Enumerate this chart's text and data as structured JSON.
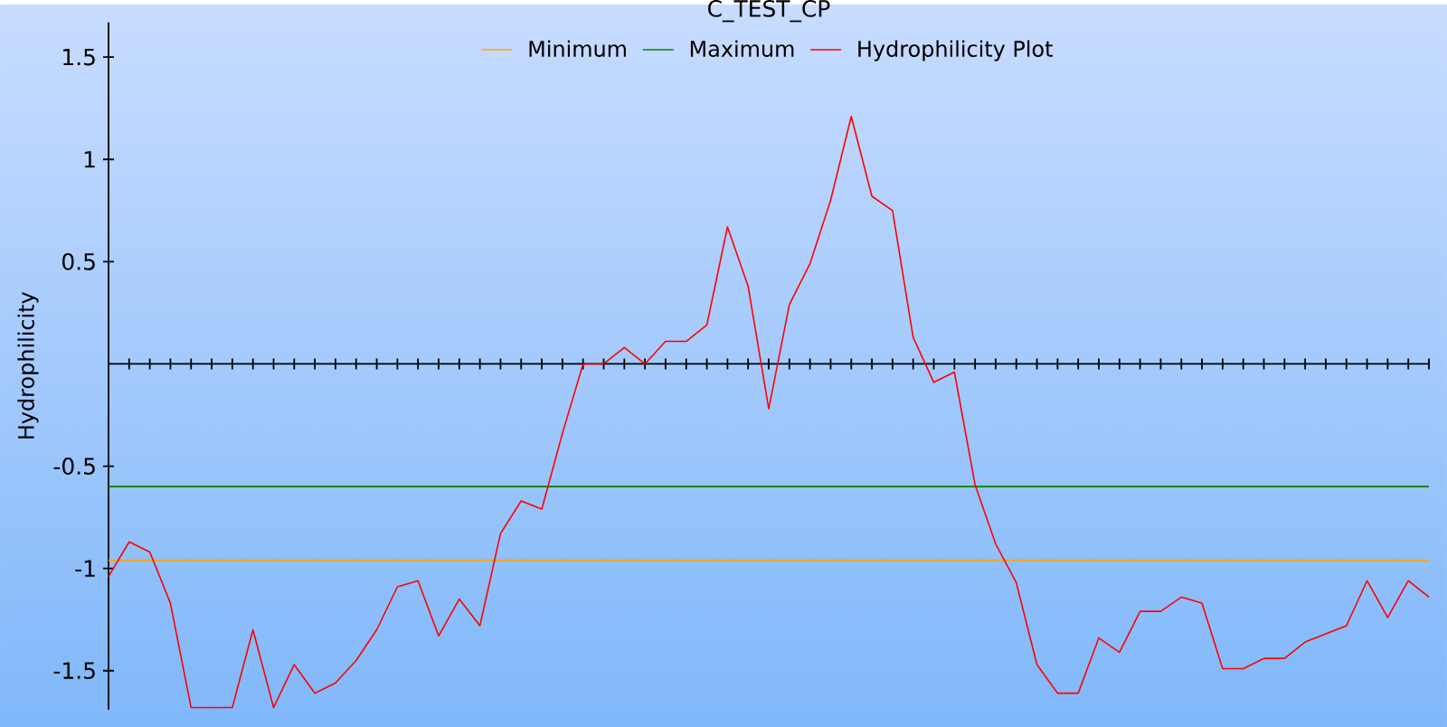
{
  "chart_data": {
    "type": "line",
    "title": "C_TEST_CP",
    "ylabel": "Hydrophilicity",
    "categories": [
      null,
      null,
      null,
      null,
      null,
      null,
      null,
      null,
      null,
      null,
      null,
      null,
      null,
      null,
      null,
      null,
      null,
      null,
      null,
      null,
      null,
      null,
      null,
      null,
      null,
      null,
      null,
      null,
      null,
      null,
      null,
      null,
      null,
      null,
      null,
      null,
      null,
      null,
      null,
      null,
      null,
      null,
      null,
      null,
      null,
      null,
      null,
      null,
      null,
      null,
      null,
      null,
      null,
      null,
      null,
      null,
      null,
      null,
      null,
      null,
      null,
      null,
      null,
      null,
      null
    ],
    "series": [
      {
        "name": "Minimum",
        "color": "#ffa500",
        "values": [
          -0.96,
          -0.96,
          -0.96,
          -0.96,
          -0.96,
          -0.96,
          -0.96,
          -0.96,
          -0.96,
          -0.96,
          -0.96,
          -0.96,
          -0.96,
          -0.96,
          -0.96,
          -0.96,
          -0.96,
          -0.96,
          -0.96,
          -0.96,
          -0.96,
          -0.96,
          -0.96,
          -0.96,
          -0.96,
          -0.96,
          -0.96,
          -0.96,
          -0.96,
          -0.96,
          -0.96,
          -0.96,
          -0.96,
          -0.96,
          -0.96,
          -0.96,
          -0.96,
          -0.96,
          -0.96,
          -0.96,
          -0.96,
          -0.96,
          -0.96,
          -0.96,
          -0.96,
          -0.96,
          -0.96,
          -0.96,
          -0.96,
          -0.96,
          -0.96,
          -0.96,
          -0.96,
          -0.96,
          -0.96,
          -0.96,
          -0.96,
          -0.96,
          -0.96,
          -0.96,
          -0.96,
          -0.96,
          -0.96,
          -0.96,
          -0.96
        ]
      },
      {
        "name": "Maximum",
        "color": "#008000",
        "values": [
          -0.6,
          -0.6,
          -0.6,
          -0.6,
          -0.6,
          -0.6,
          -0.6,
          -0.6,
          -0.6,
          -0.6,
          -0.6,
          -0.6,
          -0.6,
          -0.6,
          -0.6,
          -0.6,
          -0.6,
          -0.6,
          -0.6,
          -0.6,
          -0.6,
          -0.6,
          -0.6,
          -0.6,
          -0.6,
          -0.6,
          -0.6,
          -0.6,
          -0.6,
          -0.6,
          -0.6,
          -0.6,
          -0.6,
          -0.6,
          -0.6,
          -0.6,
          -0.6,
          -0.6,
          -0.6,
          -0.6,
          -0.6,
          -0.6,
          -0.6,
          -0.6,
          -0.6,
          -0.6,
          -0.6,
          -0.6,
          -0.6,
          -0.6,
          -0.6,
          -0.6,
          -0.6,
          -0.6,
          -0.6,
          -0.6,
          -0.6,
          -0.6,
          -0.6,
          -0.6,
          -0.6,
          -0.6,
          -0.6,
          -0.6,
          -0.6
        ]
      },
      {
        "name": "Hydrophilicity Plot",
        "color": "#ff0000",
        "values": [
          -1.04,
          -0.87,
          -0.92,
          -1.17,
          -1.68,
          -1.68,
          -1.68,
          -1.3,
          -1.68,
          -1.47,
          -1.61,
          -1.56,
          -1.45,
          -1.3,
          -1.09,
          -1.06,
          -1.33,
          -1.15,
          -1.28,
          -0.83,
          -0.67,
          -0.71,
          -0.34,
          0.0,
          0.0,
          0.08,
          0.0,
          0.11,
          0.11,
          0.19,
          0.67,
          0.38,
          -0.22,
          0.29,
          0.49,
          0.8,
          1.21,
          0.82,
          0.75,
          0.13,
          -0.09,
          -0.04,
          -0.59,
          -0.88,
          -1.07,
          -1.47,
          -1.61,
          -1.61,
          -1.34,
          -1.41,
          -1.21,
          -1.21,
          -1.14,
          -1.17,
          -1.49,
          -1.49,
          -1.44,
          -1.44,
          -1.36,
          -1.32,
          -1.28,
          -1.06,
          -1.24,
          -1.06,
          -1.14
        ]
      }
    ],
    "ylim": [
      -1.69,
      1.67
    ],
    "yticks": [
      -1.5,
      -1,
      -0.5,
      0.5,
      1,
      1.5
    ],
    "grid": false,
    "legend": "top",
    "marker": "none",
    "line_style": "solid"
  }
}
